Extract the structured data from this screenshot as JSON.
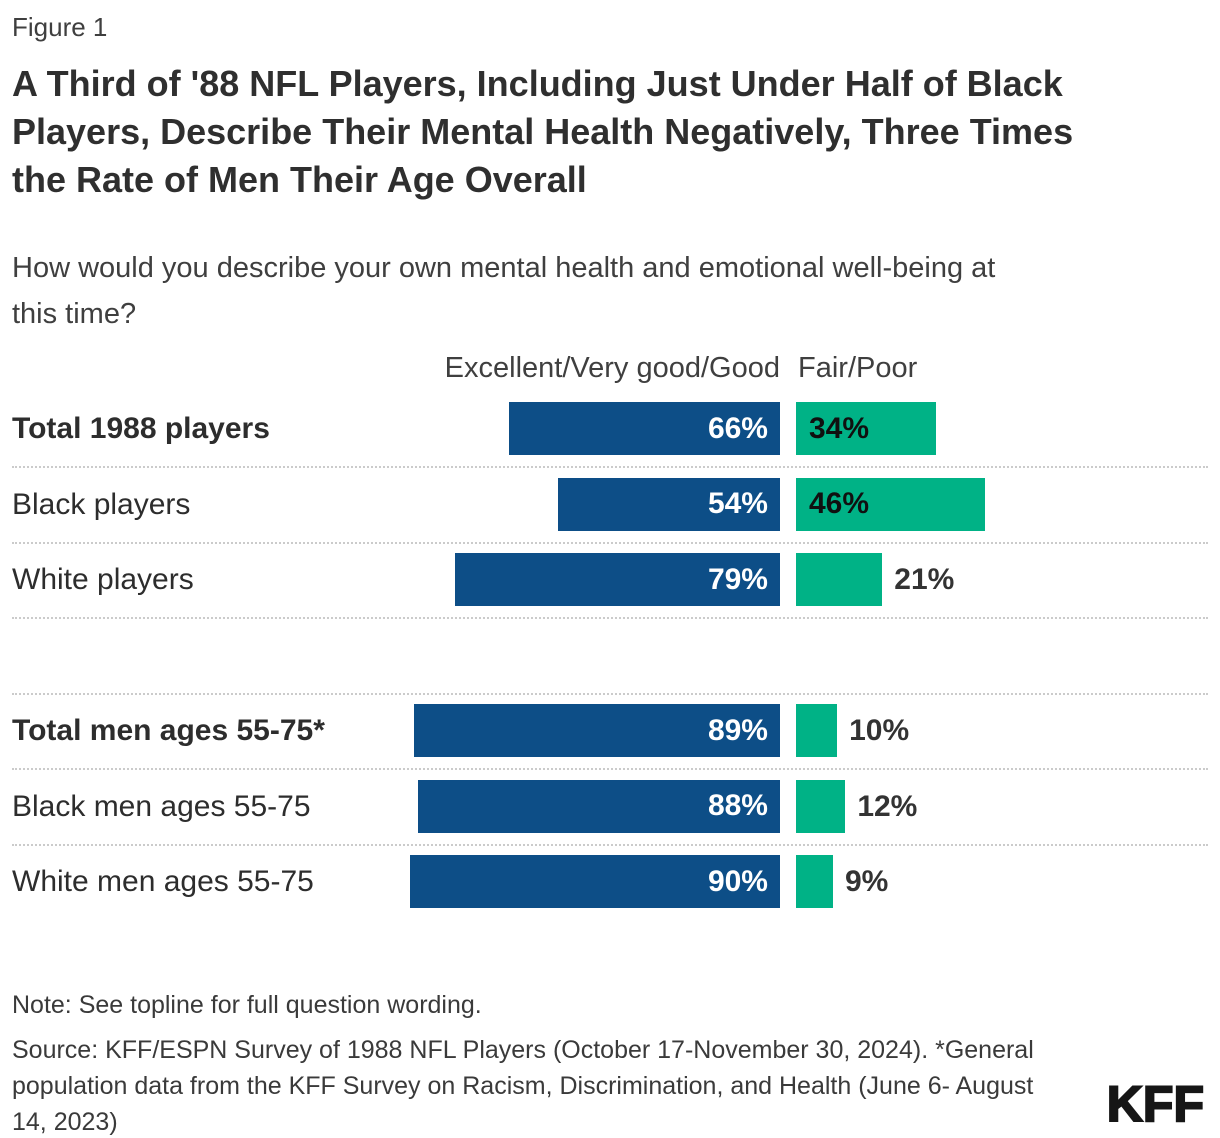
{
  "header": {
    "figure_label": "Figure 1",
    "title_lines": [
      "A Third of '88 NFL Players, Including Just Under Half of Black",
      "Players, Describe Their Mental Health Negatively, Three Times",
      "the Rate of Men Their Age Overall"
    ],
    "subtitle_lines": [
      "How would you describe your own mental health and emotional well-being at",
      "this time?"
    ]
  },
  "chart_data": {
    "type": "bar",
    "orientation": "horizontal",
    "axis_max": 100,
    "value_suffix": "%",
    "grid": "dotted-row-separators",
    "legend_position": "column-headers",
    "series": [
      {
        "name": "Excellent/Very good/Good",
        "color": "#0D4E87"
      },
      {
        "name": "Fair/Poor",
        "color": "#00B286"
      }
    ],
    "groups": [
      {
        "rows": [
          {
            "label": "Total 1988 players",
            "emphasis": true,
            "values": [
              66,
              34
            ]
          },
          {
            "label": "Black players",
            "emphasis": false,
            "values": [
              54,
              46
            ]
          },
          {
            "label": "White players",
            "emphasis": false,
            "values": [
              79,
              21
            ]
          }
        ]
      },
      {
        "rows": [
          {
            "label": "Total men ages 55-75*",
            "emphasis": true,
            "values": [
              89,
              10
            ]
          },
          {
            "label": "Black men ages 55-75",
            "emphasis": false,
            "values": [
              88,
              12
            ]
          },
          {
            "label": "White men ages 55-75",
            "emphasis": false,
            "values": [
              90,
              9
            ]
          }
        ]
      }
    ]
  },
  "footer": {
    "note": "Note: See topline for full question wording.",
    "source_lines": [
      "Source: KFF/ESPN Survey of 1988 NFL Players (October 17-November 30, 2024). *General",
      "population data from the KFF Survey on Racism, Discrimination, and Health (June 6- August",
      "14, 2023)"
    ],
    "logo": "KFF"
  }
}
